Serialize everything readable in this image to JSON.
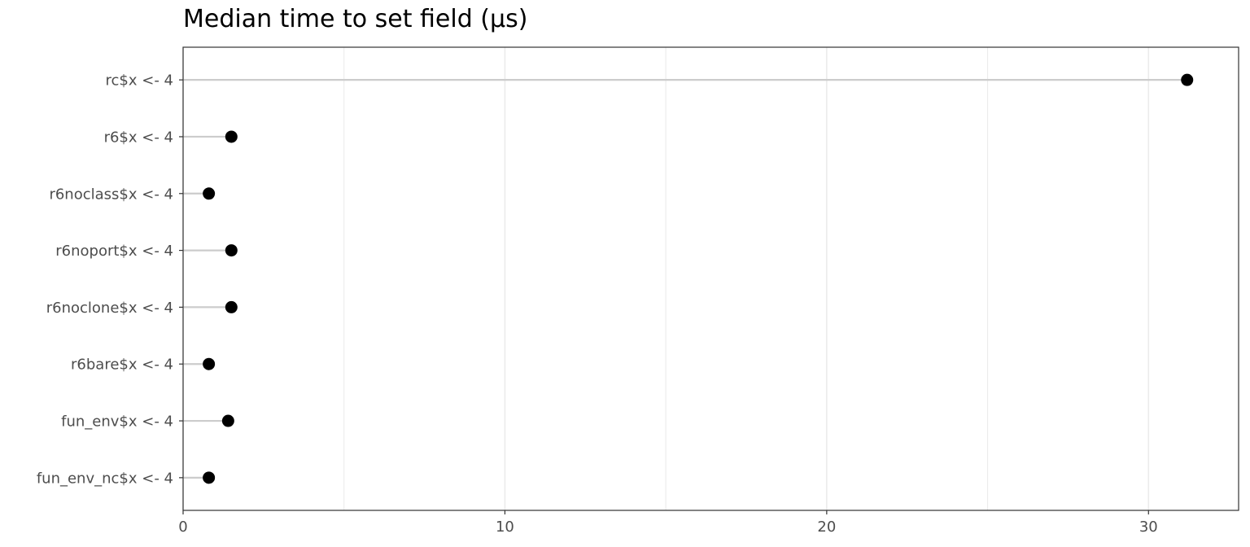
{
  "chart_data": {
    "type": "scatter",
    "subtype": "lollipop",
    "title": "Median time to set field (µs)",
    "xlabel": "",
    "ylabel": "",
    "categories": [
      "rc$x <- 4",
      "r6$x <- 4",
      "r6noclass$x <- 4",
      "r6noport$x <- 4",
      "r6noclone$x <- 4",
      "r6bare$x <- 4",
      "fun_env$x <- 4",
      "fun_env_nc$x <- 4"
    ],
    "values": [
      31.2,
      1.5,
      0.8,
      1.5,
      1.5,
      0.8,
      1.4,
      0.8
    ],
    "xlim": [
      0,
      32.8
    ],
    "xticks": [
      0,
      10,
      20,
      30
    ],
    "xtick_labels": [
      "0",
      "10",
      "20",
      "30"
    ],
    "grid": true,
    "legend": "none",
    "colors": {
      "point": "#000000",
      "stem": "#cccccc",
      "grid": "#ebebeb",
      "border": "#333333",
      "text": "#4d4d4d"
    }
  }
}
